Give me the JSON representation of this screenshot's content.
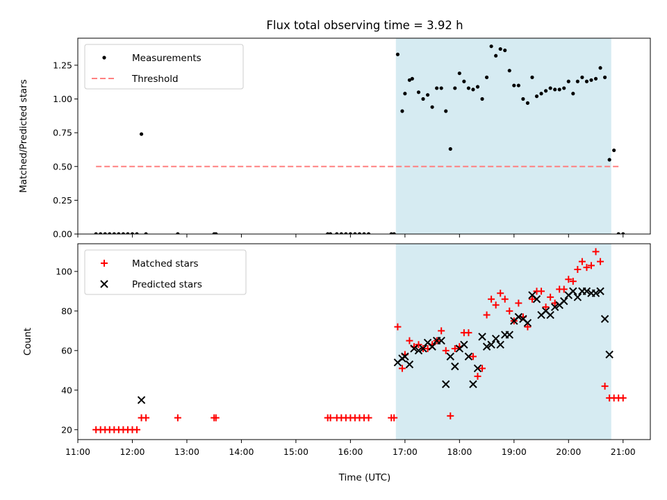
{
  "figure": {
    "title": "Flux total observing time = 3.92 h",
    "xlabel": "Time (UTC)"
  },
  "chart_data": [
    {
      "type": "scatter",
      "name": "top-panel",
      "ylabel": "Matched/Predicted stars",
      "ylim": [
        0,
        1.45
      ],
      "yticks": [
        "0.00",
        "0.25",
        "0.50",
        "0.75",
        "1.00",
        "1.25"
      ],
      "ytick_values": [
        0,
        0.25,
        0.5,
        0.75,
        1.0,
        1.25
      ],
      "xlim": [
        "11:00",
        "21:30"
      ],
      "show_x_ticklabels": false,
      "shaded_region": {
        "x0": "16:50",
        "x1": "20:47",
        "color": "#add8e6"
      },
      "legend_position": "upper-left",
      "series": [
        {
          "name": "Measurements",
          "marker": "dot",
          "color": "#000000",
          "points": [
            [
              "11:20",
              0
            ],
            [
              "11:25",
              0
            ],
            [
              "11:30",
              0
            ],
            [
              "11:35",
              0
            ],
            [
              "11:40",
              0
            ],
            [
              "11:45",
              0
            ],
            [
              "11:50",
              0
            ],
            [
              "11:55",
              0
            ],
            [
              "12:00",
              0
            ],
            [
              "12:05",
              0
            ],
            [
              "12:10",
              0.74
            ],
            [
              "12:15",
              0
            ],
            [
              "12:50",
              0
            ],
            [
              "13:30",
              0
            ],
            [
              "13:32",
              0
            ],
            [
              "15:35",
              0
            ],
            [
              "15:38",
              0
            ],
            [
              "15:45",
              0
            ],
            [
              "15:50",
              0
            ],
            [
              "15:55",
              0
            ],
            [
              "16:00",
              0
            ],
            [
              "16:05",
              0
            ],
            [
              "16:10",
              0
            ],
            [
              "16:15",
              0
            ],
            [
              "16:20",
              0
            ],
            [
              "16:45",
              0
            ],
            [
              "16:48",
              0
            ],
            [
              "16:52",
              1.33
            ],
            [
              "16:57",
              0.91
            ],
            [
              "17:00",
              1.04
            ],
            [
              "17:05",
              1.14
            ],
            [
              "17:08",
              1.15
            ],
            [
              "17:15",
              1.05
            ],
            [
              "17:20",
              1.0
            ],
            [
              "17:25",
              1.03
            ],
            [
              "17:30",
              0.94
            ],
            [
              "17:35",
              1.08
            ],
            [
              "17:40",
              1.08
            ],
            [
              "17:45",
              0.91
            ],
            [
              "17:50",
              0.63
            ],
            [
              "17:55",
              1.08
            ],
            [
              "18:00",
              1.19
            ],
            [
              "18:05",
              1.13
            ],
            [
              "18:10",
              1.08
            ],
            [
              "18:15",
              1.07
            ],
            [
              "18:20",
              1.09
            ],
            [
              "18:25",
              1.0
            ],
            [
              "18:30",
              1.16
            ],
            [
              "18:35",
              1.39
            ],
            [
              "18:40",
              1.32
            ],
            [
              "18:45",
              1.37
            ],
            [
              "18:50",
              1.36
            ],
            [
              "18:55",
              1.21
            ],
            [
              "19:00",
              1.1
            ],
            [
              "19:05",
              1.1
            ],
            [
              "19:10",
              1.0
            ],
            [
              "19:15",
              0.97
            ],
            [
              "19:20",
              1.16
            ],
            [
              "19:25",
              1.02
            ],
            [
              "19:30",
              1.04
            ],
            [
              "19:35",
              1.06
            ],
            [
              "19:40",
              1.08
            ],
            [
              "19:45",
              1.07
            ],
            [
              "19:50",
              1.07
            ],
            [
              "19:55",
              1.08
            ],
            [
              "20:00",
              1.13
            ],
            [
              "20:05",
              1.04
            ],
            [
              "20:10",
              1.13
            ],
            [
              "20:15",
              1.16
            ],
            [
              "20:20",
              1.13
            ],
            [
              "20:25",
              1.14
            ],
            [
              "20:30",
              1.15
            ],
            [
              "20:35",
              1.23
            ],
            [
              "20:40",
              1.16
            ],
            [
              "20:45",
              0.55
            ],
            [
              "20:50",
              0.62
            ],
            [
              "20:55",
              0
            ],
            [
              "21:00",
              0
            ]
          ]
        },
        {
          "name": "Threshold",
          "type": "line",
          "style": "dashed",
          "color": "#ff8080",
          "points": [
            [
              "11:20",
              0.5
            ],
            [
              "20:55",
              0.5
            ]
          ]
        }
      ]
    },
    {
      "type": "scatter",
      "name": "bottom-panel",
      "ylabel": "Count",
      "ylim": [
        15,
        114
      ],
      "yticks": [
        "20",
        "40",
        "60",
        "80",
        "100"
      ],
      "ytick_values": [
        20,
        40,
        60,
        80,
        100
      ],
      "xlim": [
        "11:00",
        "21:30"
      ],
      "xticks": [
        "11:00",
        "12:00",
        "13:00",
        "14:00",
        "15:00",
        "16:00",
        "17:00",
        "18:00",
        "19:00",
        "20:00",
        "21:00"
      ],
      "shaded_region": {
        "x0": "16:50",
        "x1": "20:47",
        "color": "#add8e6"
      },
      "legend_position": "upper-left",
      "series": [
        {
          "name": "Matched stars",
          "marker": "plus",
          "color": "#ff0000",
          "points": [
            [
              "11:20",
              20
            ],
            [
              "11:25",
              20
            ],
            [
              "11:30",
              20
            ],
            [
              "11:35",
              20
            ],
            [
              "11:40",
              20
            ],
            [
              "11:45",
              20
            ],
            [
              "11:50",
              20
            ],
            [
              "11:55",
              20
            ],
            [
              "12:00",
              20
            ],
            [
              "12:05",
              20
            ],
            [
              "12:10",
              26
            ],
            [
              "12:15",
              26
            ],
            [
              "12:50",
              26
            ],
            [
              "13:30",
              26
            ],
            [
              "13:32",
              26
            ],
            [
              "15:35",
              26
            ],
            [
              "15:38",
              26
            ],
            [
              "15:45",
              26
            ],
            [
              "15:50",
              26
            ],
            [
              "15:55",
              26
            ],
            [
              "16:00",
              26
            ],
            [
              "16:05",
              26
            ],
            [
              "16:10",
              26
            ],
            [
              "16:15",
              26
            ],
            [
              "16:20",
              26
            ],
            [
              "16:45",
              26
            ],
            [
              "16:48",
              26
            ],
            [
              "16:52",
              72
            ],
            [
              "16:57",
              51
            ],
            [
              "17:00",
              58
            ],
            [
              "17:05",
              65
            ],
            [
              "17:10",
              62
            ],
            [
              "17:15",
              63
            ],
            [
              "17:20",
              61
            ],
            [
              "17:25",
              61
            ],
            [
              "17:30",
              63
            ],
            [
              "17:35",
              65
            ],
            [
              "17:40",
              70
            ],
            [
              "17:45",
              60
            ],
            [
              "17:50",
              27
            ],
            [
              "17:55",
              61
            ],
            [
              "18:00",
              62
            ],
            [
              "18:05",
              69
            ],
            [
              "18:10",
              69
            ],
            [
              "18:15",
              57
            ],
            [
              "18:20",
              47
            ],
            [
              "18:25",
              51
            ],
            [
              "18:30",
              78
            ],
            [
              "18:35",
              86
            ],
            [
              "18:40",
              83
            ],
            [
              "18:45",
              89
            ],
            [
              "18:50",
              86
            ],
            [
              "18:55",
              80
            ],
            [
              "19:00",
              75
            ],
            [
              "19:05",
              84
            ],
            [
              "19:10",
              77
            ],
            [
              "19:15",
              72
            ],
            [
              "19:20",
              86
            ],
            [
              "19:25",
              90
            ],
            [
              "19:30",
              90
            ],
            [
              "19:35",
              82
            ],
            [
              "19:40",
              87
            ],
            [
              "19:45",
              84
            ],
            [
              "19:50",
              91
            ],
            [
              "19:55",
              91
            ],
            [
              "20:00",
              96
            ],
            [
              "20:05",
              95
            ],
            [
              "20:10",
              101
            ],
            [
              "20:15",
              105
            ],
            [
              "20:20",
              102
            ],
            [
              "20:25",
              103
            ],
            [
              "20:30",
              110
            ],
            [
              "20:35",
              105
            ],
            [
              "20:40",
              42
            ],
            [
              "20:45",
              36
            ],
            [
              "20:50",
              36
            ],
            [
              "20:55",
              36
            ],
            [
              "21:00",
              36
            ]
          ]
        },
        {
          "name": "Predicted stars",
          "marker": "x",
          "color": "#000000",
          "points": [
            [
              "12:10",
              35
            ],
            [
              "16:52",
              54
            ],
            [
              "16:57",
              56
            ],
            [
              "17:00",
              57
            ],
            [
              "17:05",
              53
            ],
            [
              "17:10",
              61
            ],
            [
              "17:15",
              60
            ],
            [
              "17:20",
              61
            ],
            [
              "17:25",
              64
            ],
            [
              "17:30",
              62
            ],
            [
              "17:35",
              65
            ],
            [
              "17:40",
              65
            ],
            [
              "17:45",
              43
            ],
            [
              "17:50",
              57
            ],
            [
              "17:55",
              52
            ],
            [
              "18:00",
              61
            ],
            [
              "18:05",
              63
            ],
            [
              "18:10",
              57
            ],
            [
              "18:15",
              43
            ],
            [
              "18:20",
              51
            ],
            [
              "18:25",
              67
            ],
            [
              "18:30",
              62
            ],
            [
              "18:35",
              63
            ],
            [
              "18:40",
              66
            ],
            [
              "18:45",
              63
            ],
            [
              "18:50",
              68
            ],
            [
              "18:55",
              68
            ],
            [
              "19:00",
              75
            ],
            [
              "19:05",
              77
            ],
            [
              "19:10",
              76
            ],
            [
              "19:15",
              74
            ],
            [
              "19:20",
              88
            ],
            [
              "19:25",
              86
            ],
            [
              "19:30",
              78
            ],
            [
              "19:35",
              80
            ],
            [
              "19:40",
              78
            ],
            [
              "19:45",
              82
            ],
            [
              "19:50",
              83
            ],
            [
              "19:55",
              85
            ],
            [
              "20:00",
              88
            ],
            [
              "20:05",
              90
            ],
            [
              "20:10",
              87
            ],
            [
              "20:15",
              90
            ],
            [
              "20:20",
              90
            ],
            [
              "20:25",
              89
            ],
            [
              "20:30",
              89
            ],
            [
              "20:35",
              90
            ],
            [
              "20:40",
              76
            ],
            [
              "20:45",
              58
            ]
          ]
        }
      ]
    }
  ]
}
